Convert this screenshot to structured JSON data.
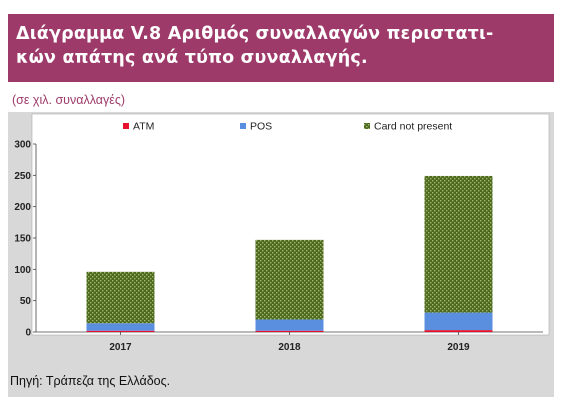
{
  "header": {
    "title": "Διάγραμμα V.8 Αριθμός συναλλαγών περιστατι-κών απάτης ανά τύπο συναλλαγής.",
    "title_line1": "Διάγραμμα V.8 Αριθμός συναλλαγών περιστατι-",
    "title_line2": "κών απάτης ανά τύπο συναλλαγής.",
    "unit_note": "(σε χιλ. συναλλαγές)",
    "title_bg_color": "#9e3a6a"
  },
  "footer": {
    "source": "Πηγή: Τράπεζα της Ελλάδος."
  },
  "chart_data": {
    "type": "bar",
    "stacked": true,
    "categories": [
      "2017",
      "2018",
      "2019"
    ],
    "series": [
      {
        "name": "ATM",
        "values": [
          2,
          2,
          3
        ],
        "color": "#e8112d",
        "pattern": "solid"
      },
      {
        "name": "POS",
        "values": [
          12,
          18,
          28
        ],
        "color": "#5a8fe0",
        "pattern": "solid"
      },
      {
        "name": "Card not present",
        "values": [
          82,
          127,
          218
        ],
        "color": "#556b2f",
        "pattern": "dotted"
      }
    ],
    "yticks": [
      0,
      50,
      100,
      150,
      200,
      250,
      300
    ],
    "ylim": [
      0,
      300
    ],
    "legend_position": "top",
    "grid": false,
    "background_color": "#d8d8d8",
    "plot_background_color": "#ffffff"
  }
}
